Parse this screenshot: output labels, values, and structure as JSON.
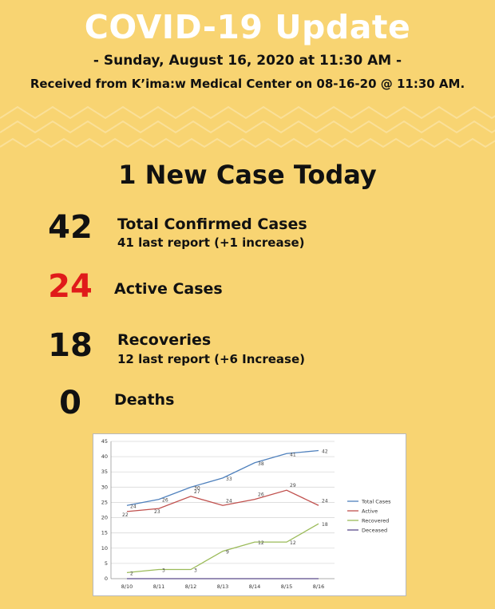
{
  "header": {
    "title": "COVID-19 Update",
    "subtitle": "- Sunday, August 16, 2020 at 11:30 AM -",
    "received": "Received from K’ima:w Medical Center on 08-16-20 @ 11:30 AM."
  },
  "headline": "1 New Case Today",
  "stats": [
    {
      "number": "42",
      "label": "Total Confirmed Cases",
      "sub": "41 last report (+1 increase)"
    },
    {
      "number": "24",
      "label": "Active Cases",
      "sub": ""
    },
    {
      "number": "18",
      "label": "Recoveries",
      "sub": "12 last report (+6 Increase)"
    },
    {
      "number": "0",
      "label": "Deaths",
      "sub": ""
    }
  ],
  "colors": {
    "background": "#f8d472",
    "active_number": "#e01a1a",
    "total_cases": "#4f81bd",
    "active": "#c0504d",
    "recovered": "#9bbb59",
    "deceased": "#5b4a8b"
  },
  "chart_data": {
    "type": "line",
    "categories": [
      "8/10",
      "8/11",
      "8/12",
      "8/13",
      "8/14",
      "8/15",
      "8/16"
    ],
    "ylim": [
      0,
      45
    ],
    "yticks": [
      0,
      5,
      10,
      15,
      20,
      25,
      30,
      35,
      40,
      45
    ],
    "grid": true,
    "legend_position": "right",
    "series": [
      {
        "name": "Total Cases",
        "color": "#4f81bd",
        "values": [
          24,
          26,
          30,
          33,
          38,
          41,
          42
        ]
      },
      {
        "name": "Active",
        "color": "#c0504d",
        "values": [
          22,
          23,
          27,
          24,
          26,
          29,
          24
        ]
      },
      {
        "name": "Recovered",
        "color": "#9bbb59",
        "values": [
          2,
          3,
          3,
          9,
          12,
          12,
          18
        ]
      },
      {
        "name": "Deceased",
        "color": "#5b4a8b",
        "values": [
          0,
          0,
          0,
          0,
          0,
          0,
          0
        ]
      }
    ]
  }
}
